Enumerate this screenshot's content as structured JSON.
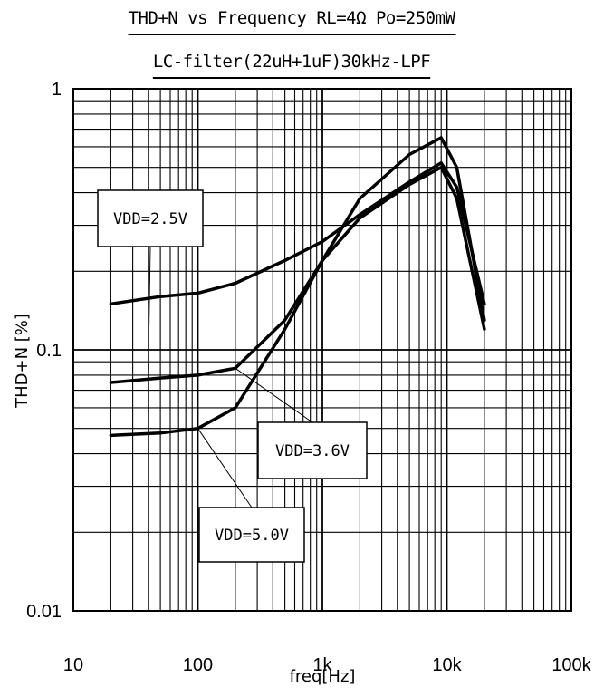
{
  "chart_data": {
    "type": "line",
    "title": "THD+N vs Frequency RL=4Ω  Po=250mW",
    "subtitle": "LC-filter(22uH+1uF)30kHz-LPF",
    "xlabel": "freq[Hz]",
    "ylabel": "THD+N [%]",
    "x_scale": "log",
    "y_scale": "log",
    "xlim": [
      10,
      100000
    ],
    "ylim": [
      0.01,
      1
    ],
    "grid": true,
    "x_ticks": [
      {
        "value": 10,
        "label": "10"
      },
      {
        "value": 100,
        "label": "100"
      },
      {
        "value": 1000,
        "label": "1k"
      },
      {
        "value": 10000,
        "label": "10k"
      },
      {
        "value": 100000,
        "label": "100k"
      }
    ],
    "y_ticks": [
      {
        "value": 0.01,
        "label": "0.01"
      },
      {
        "value": 0.1,
        "label": "0.1"
      },
      {
        "value": 1,
        "label": "1"
      }
    ],
    "series": [
      {
        "name": "VDD=2.5V",
        "x": [
          20,
          50,
          100,
          200,
          500,
          1000,
          2000,
          5000,
          9000,
          12000,
          20000
        ],
        "y": [
          0.15,
          0.16,
          0.165,
          0.18,
          0.22,
          0.26,
          0.33,
          0.44,
          0.52,
          0.42,
          0.15
        ]
      },
      {
        "name": "VDD=3.6V",
        "x": [
          20,
          50,
          100,
          200,
          500,
          1000,
          2000,
          5000,
          9000,
          12000,
          20000
        ],
        "y": [
          0.075,
          0.078,
          0.08,
          0.085,
          0.13,
          0.22,
          0.32,
          0.43,
          0.5,
          0.38,
          0.12
        ]
      },
      {
        "name": "VDD=5.0V",
        "x": [
          20,
          50,
          100,
          200,
          500,
          1000,
          2000,
          5000,
          9000,
          12000,
          20000
        ],
        "y": [
          0.047,
          0.048,
          0.05,
          0.06,
          0.12,
          0.22,
          0.38,
          0.56,
          0.65,
          0.5,
          0.13
        ]
      }
    ],
    "annotations": [
      {
        "text": "VDD=2.5V",
        "series": 0
      },
      {
        "text": "VDD=3.6V",
        "series": 1
      },
      {
        "text": "VDD=5.0V",
        "series": 2
      }
    ]
  }
}
